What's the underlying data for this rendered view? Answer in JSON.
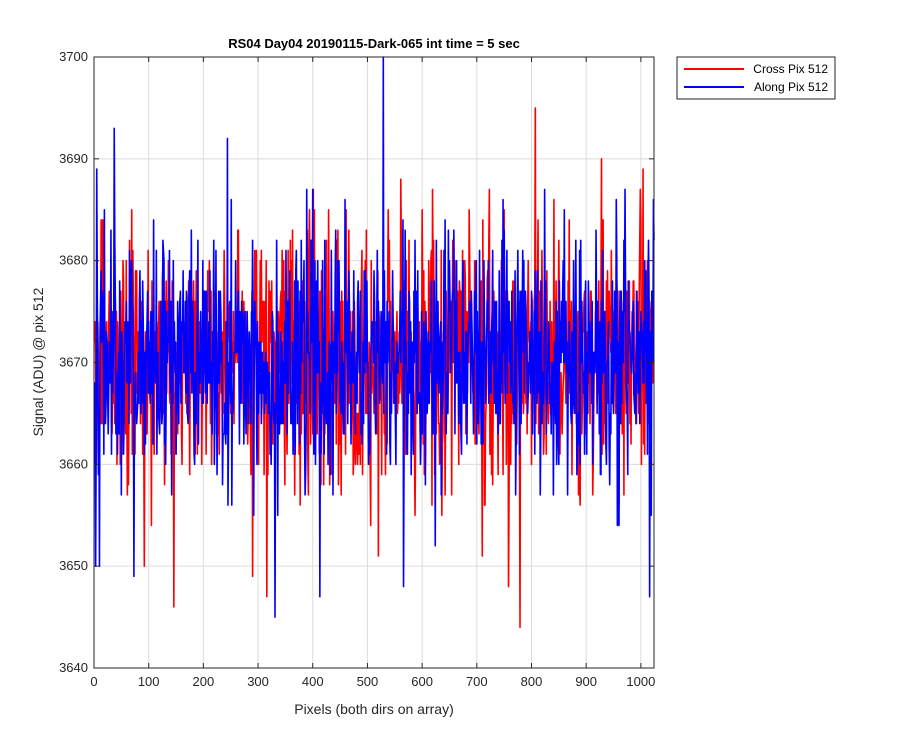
{
  "chart_data": {
    "type": "line",
    "title": "RS04 Day04 20190115-Dark-065 int time = 5 sec",
    "xlabel": "Pixels (both dirs on array)",
    "ylabel": "Signal (ADU) @ pix 512",
    "xlim": [
      0,
      1024
    ],
    "ylim": [
      3640,
      3700
    ],
    "x_ticks": [
      0,
      100,
      200,
      300,
      400,
      500,
      600,
      700,
      800,
      900,
      1000
    ],
    "y_ticks": [
      3640,
      3650,
      3660,
      3670,
      3680,
      3690,
      3700
    ],
    "grid": true,
    "legend_position": "outside top-right",
    "series": [
      {
        "name": "Cross Pix 512",
        "color": "#ff0000",
        "noise": {
          "mean": 3670,
          "spread": 6.5,
          "min": 3644,
          "max": 3695,
          "count": 1024,
          "seed": 17
        },
        "peaks": [
          [
            15,
            3684
          ],
          [
            70,
            3681
          ],
          [
            91,
            3650
          ],
          [
            145,
            3646
          ],
          [
            315,
            3647
          ],
          [
            400,
            3687
          ],
          [
            560,
            3688
          ],
          [
            757,
            3648
          ],
          [
            778,
            3644
          ],
          [
            806,
            3695
          ],
          [
            818,
            3681
          ],
          [
            927,
            3690
          ],
          [
            1003,
            3689
          ]
        ]
      },
      {
        "name": "Along Pix 512",
        "color": "#0000ff",
        "noise": {
          "mean": 3670,
          "spread": 6.0,
          "min": 3645,
          "max": 3700,
          "count": 1024,
          "seed": 42
        },
        "peaks": [
          [
            2,
            3650
          ],
          [
            4,
            3689
          ],
          [
            36,
            3693
          ],
          [
            72,
            3649
          ],
          [
            243,
            3692
          ],
          [
            330,
            3645
          ],
          [
            412,
            3647
          ],
          [
            458,
            3686
          ],
          [
            528,
            3700
          ],
          [
            565,
            3648
          ],
          [
            823,
            3687
          ],
          [
            956,
            3654
          ],
          [
            970,
            3687
          ],
          [
            1015,
            3647
          ],
          [
            1022,
            3686
          ]
        ]
      }
    ]
  }
}
